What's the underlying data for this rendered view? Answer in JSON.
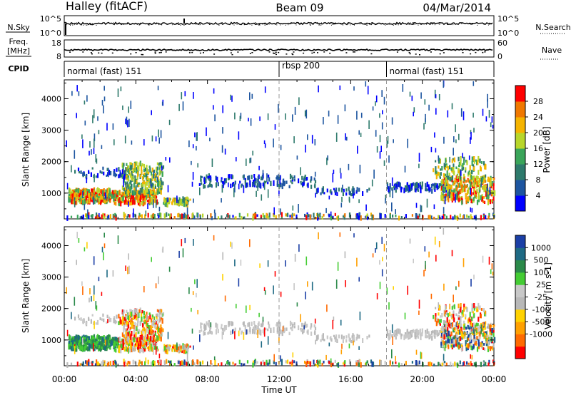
{
  "header": {
    "station": "Halley (fitACF)",
    "beam": "Beam 09",
    "date": "04/Mar/2014"
  },
  "noise_panel": {
    "left_label": "N.Sky",
    "left_ticks": [
      "10^5",
      "10^0"
    ],
    "right_label": "N.Search",
    "right_ticks": [
      "10^5",
      "10^0"
    ]
  },
  "freq_panel": {
    "left_label_top": "Freq.",
    "left_label_unit": "[MHz]",
    "left_ticks": [
      "18",
      "8"
    ],
    "right_label": "Nave",
    "right_ticks": [
      "60",
      "0"
    ]
  },
  "cpid_panel": {
    "label": "CPID",
    "modes": [
      {
        "start_hour": 0,
        "end_hour": 12,
        "name": "normal (fast) 151"
      },
      {
        "start_hour": 12,
        "end_hour": 18,
        "name": "rbsp 200"
      },
      {
        "start_hour": 18,
        "end_hour": 24,
        "name": "normal (fast) 151"
      }
    ]
  },
  "colors": {
    "power": [
      "#0000ff",
      "#1d55a0",
      "#2e7a6c",
      "#3aa55a",
      "#b8d62a",
      "#f5b400",
      "#f07800",
      "#ff0000"
    ],
    "velocity": [
      "#ff0000",
      "#ff6a00",
      "#ffa000",
      "#ffd200",
      "#b8b8b8",
      "#c8c8c8",
      "#44cc33",
      "#2b8a4a",
      "#1e6a84",
      "#1b3fa6"
    ]
  },
  "chart_data": [
    {
      "type": "heatmap",
      "name": "power",
      "xlabel": "",
      "ylabel": "Slant Range [km]",
      "xlim": [
        0,
        24
      ],
      "ylim": [
        180,
        4600
      ],
      "yticks": [
        1000,
        2000,
        3000,
        4000
      ],
      "ytick_labels": [
        "1000",
        "2000",
        "3000",
        "4000"
      ],
      "colorbar": {
        "label": "Power [dB]",
        "ticks": [
          "4",
          "8",
          "12",
          "16",
          "20",
          "24",
          "28"
        ],
        "range": [
          0,
          32
        ]
      }
    },
    {
      "type": "heatmap",
      "name": "velocity",
      "xlabel": "Time UT",
      "ylabel": "Slant Range [km]",
      "xlim": [
        0,
        24
      ],
      "ylim": [
        180,
        4600
      ],
      "xticks": [
        0,
        4,
        8,
        12,
        16,
        20,
        24
      ],
      "xtick_labels": [
        "00:00",
        "04:00",
        "08:00",
        "12:00",
        "16:00",
        "20:00",
        "00:00"
      ],
      "yticks": [
        1000,
        2000,
        3000,
        4000
      ],
      "ytick_labels": [
        "1000",
        "2000",
        "3000",
        "4000"
      ],
      "colorbar": {
        "label": "Velocity [m s-1]",
        "ticks": [
          "1000",
          "500",
          "100",
          "25",
          "-25",
          "-100",
          "-500",
          "-1000"
        ]
      }
    }
  ]
}
